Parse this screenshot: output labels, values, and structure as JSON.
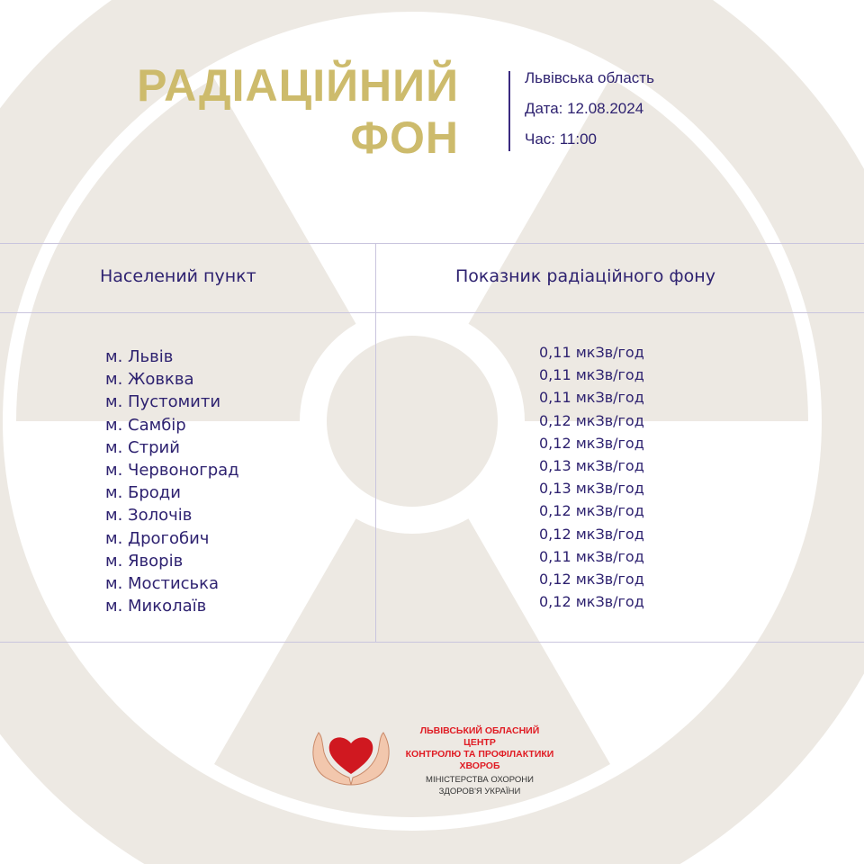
{
  "colors": {
    "background_symbol": "#ede9e3",
    "title": "#cdbb6c",
    "text": "#2e2270",
    "lines": "#c9c5de",
    "logo_red": "#e01c24"
  },
  "header": {
    "title_line1": "РАДІАЦІЙНИЙ",
    "title_line2": "ФОН",
    "region": "Львівська область",
    "date": "Дата: 12.08.2024",
    "time": "Час: 11:00"
  },
  "table": {
    "headers": [
      "Населений пункт",
      "Показник радіаційного фону"
    ],
    "rows": [
      {
        "city": "м. Львів",
        "value": "0,11 мкЗв/год"
      },
      {
        "city": "м. Жовква",
        "value": "0,11 мкЗв/год"
      },
      {
        "city": "м. Пустомити",
        "value": "0,11 мкЗв/год"
      },
      {
        "city": "м. Самбір",
        "value": "0,12 мкЗв/год"
      },
      {
        "city": "м. Стрий",
        "value": "0,12 мкЗв/год"
      },
      {
        "city": "м. Червоноград",
        "value": "0,13 мкЗв/год"
      },
      {
        "city": "м. Броди",
        "value": "0,13 мкЗв/год"
      },
      {
        "city": "м. Золочів",
        "value": "0,12 мкЗв/год"
      },
      {
        "city": "м. Дрогобич",
        "value": "0,12 мкЗв/год"
      },
      {
        "city": "м. Яворів",
        "value": "0,11 мкЗв/год"
      },
      {
        "city": "м. Мостиська",
        "value": "0,12 мкЗв/год"
      },
      {
        "city": "м. Миколаїв",
        "value": "0,12 мкЗв/год"
      }
    ]
  },
  "footer": {
    "org_line1": "ЛЬВІВСЬКИЙ ОБЛАСНИЙ ЦЕНТР",
    "org_line2": "КОНТРОЛЮ ТА ПРОФІЛАКТИКИ",
    "org_line3": "ХВОРОБ",
    "ministry_line1": "МІНІСТЕРСТВА ОХОРОНИ",
    "ministry_line2": "ЗДОРОВ'Я УКРАЇНИ",
    "logo_icon": "heart-in-hands-icon"
  }
}
